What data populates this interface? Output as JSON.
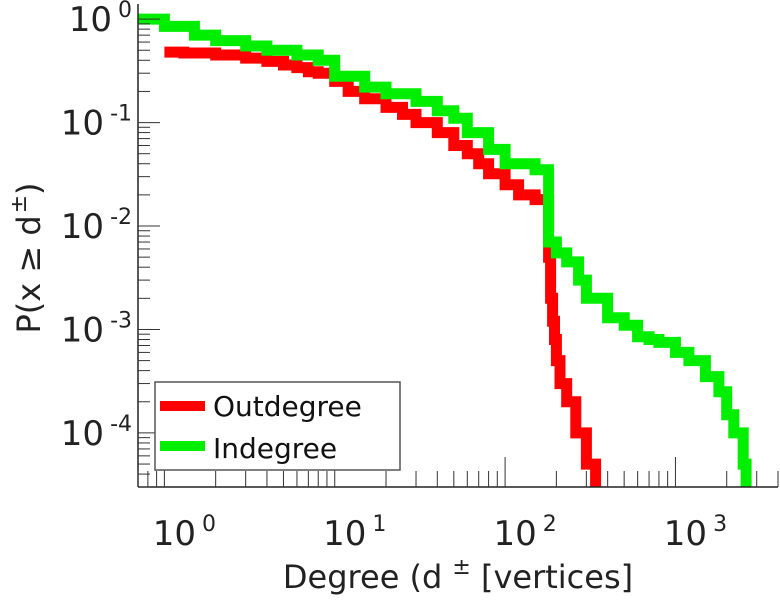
{
  "chart_data": {
    "type": "line",
    "title": "",
    "xscale": "log",
    "yscale": "log",
    "xlabel": {
      "main": "Degree (d",
      "sup": "±",
      "suffix": " [vertices]"
    },
    "ylabel": {
      "main": "P(x ≥ d",
      "sup": "±",
      "suffix": ")"
    },
    "xlim": [
      0.7,
      4000
    ],
    "ylim": [
      3e-05,
      1.4
    ],
    "xticks": [
      {
        "value": 1,
        "base": "10",
        "exp": "0"
      },
      {
        "value": 10,
        "base": "10",
        "exp": "1"
      },
      {
        "value": 100,
        "base": "10",
        "exp": "2"
      },
      {
        "value": 1000,
        "base": "10",
        "exp": "3"
      }
    ],
    "yticks": [
      {
        "value": 1,
        "base": "10",
        "exp": "0"
      },
      {
        "value": 0.1,
        "base": "10",
        "exp": "-1"
      },
      {
        "value": 0.01,
        "base": "10",
        "exp": "-2"
      },
      {
        "value": 0.001,
        "base": "10",
        "exp": "-3"
      },
      {
        "value": 0.0001,
        "base": "10",
        "exp": "-4"
      }
    ],
    "grid": false,
    "legend_position": "bottom-left",
    "series": [
      {
        "name": "Outdegree",
        "color": "#ff0000",
        "step": true,
        "x": [
          1,
          1.3,
          2,
          3,
          4,
          5,
          6,
          7,
          8,
          10,
          12,
          15,
          20,
          25,
          30,
          40,
          50,
          60,
          70,
          80,
          100,
          120,
          150,
          180,
          185,
          190,
          195,
          200,
          210,
          230,
          260,
          300,
          340
        ],
        "y": [
          0.48,
          0.47,
          0.45,
          0.42,
          0.39,
          0.36,
          0.34,
          0.31,
          0.3,
          0.25,
          0.2,
          0.17,
          0.14,
          0.12,
          0.1,
          0.08,
          0.06,
          0.05,
          0.04,
          0.032,
          0.025,
          0.02,
          0.018,
          0.005,
          0.002,
          0.0012,
          0.0008,
          0.0005,
          0.0003,
          0.0002,
          0.0001,
          5e-05,
          3e-05
        ]
      },
      {
        "name": "Indegree",
        "color": "#00ee00",
        "step": true,
        "x": [
          0.7,
          1,
          1.5,
          2,
          3,
          4,
          6,
          8,
          10,
          15,
          20,
          30,
          40,
          50,
          60,
          80,
          100,
          150,
          180,
          200,
          230,
          270,
          300,
          400,
          500,
          600,
          700,
          800,
          1000,
          1200,
          1500,
          1800,
          2000,
          2200,
          2500,
          2600
        ],
        "y": [
          1,
          0.85,
          0.7,
          0.62,
          0.55,
          0.5,
          0.45,
          0.4,
          0.28,
          0.22,
          0.19,
          0.16,
          0.13,
          0.11,
          0.08,
          0.055,
          0.04,
          0.035,
          0.007,
          0.0055,
          0.0045,
          0.003,
          0.002,
          0.0013,
          0.0011,
          0.00085,
          0.0008,
          0.00075,
          0.0006,
          0.0005,
          0.00035,
          0.00025,
          0.00015,
          0.0001,
          5e-05,
          3e-05
        ]
      }
    ]
  }
}
